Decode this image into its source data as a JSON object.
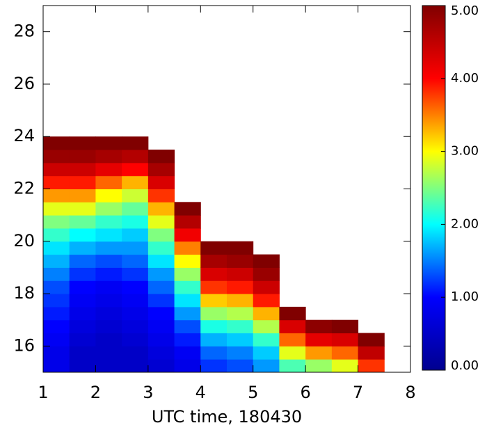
{
  "chart_data": {
    "type": "heatmap",
    "x_label": "UTC time, 180430",
    "xlim": [
      1,
      8
    ],
    "xticks": [
      1,
      2,
      3,
      4,
      5,
      6,
      7,
      8
    ],
    "ylim": [
      15,
      29
    ],
    "yticks": [
      16,
      18,
      20,
      22,
      24,
      26,
      28
    ],
    "x_bins": [
      1,
      1.5,
      2,
      2.5,
      3,
      3.5,
      4,
      4.5,
      5,
      5.5,
      6,
      6.5,
      7,
      7.5
    ],
    "y_bins": [
      15,
      15.5,
      16,
      16.5,
      17,
      17.5,
      18,
      18.5,
      19,
      19.5,
      20,
      20.5,
      21,
      21.5,
      22,
      22.5,
      23,
      23.5,
      24,
      24.5,
      25
    ],
    "z": [
      [
        0.8,
        0.8,
        0.9,
        1.0,
        1.1,
        1.2,
        1.3,
        1.5,
        1.7,
        1.9,
        2.2,
        2.5,
        2.9,
        3.4,
        3.9,
        4.4,
        4.8,
        5.0,
        null,
        null
      ],
      [
        0.5,
        0.5,
        0.6,
        0.7,
        0.8,
        0.9,
        1.0,
        1.2,
        1.4,
        1.7,
        2.0,
        2.4,
        2.9,
        3.4,
        3.9,
        4.4,
        4.8,
        5.0,
        null,
        null
      ],
      [
        0.5,
        0.5,
        0.5,
        0.6,
        0.7,
        0.8,
        0.9,
        1.1,
        1.3,
        1.6,
        1.9,
        2.2,
        2.6,
        3.0,
        3.6,
        4.2,
        4.7,
        5.0,
        null,
        null
      ],
      [
        0.5,
        0.5,
        0.6,
        0.7,
        0.8,
        0.9,
        1.0,
        1.2,
        1.4,
        1.6,
        1.8,
        2.1,
        2.4,
        2.8,
        3.3,
        4.0,
        4.6,
        5.0,
        null,
        null
      ],
      [
        0.6,
        0.7,
        0.8,
        0.9,
        1.0,
        1.2,
        1.4,
        1.6,
        1.9,
        2.2,
        2.5,
        2.9,
        3.3,
        3.8,
        4.3,
        4.7,
        5.0,
        null,
        null,
        null
      ],
      [
        0.8,
        0.9,
        1.1,
        1.3,
        1.6,
        1.9,
        2.2,
        2.6,
        3.0,
        3.5,
        4.1,
        4.6,
        5.0,
        null,
        null,
        null,
        null,
        null,
        null,
        null
      ],
      [
        1.2,
        1.4,
        1.7,
        2.1,
        2.6,
        3.2,
        3.8,
        4.3,
        4.7,
        5.0,
        null,
        null,
        null,
        null,
        null,
        null,
        null,
        null,
        null,
        null
      ],
      [
        1.3,
        1.5,
        1.8,
        2.2,
        2.7,
        3.3,
        3.9,
        4.4,
        4.8,
        5.0,
        null,
        null,
        null,
        null,
        null,
        null,
        null,
        null,
        null,
        null
      ],
      [
        1.6,
        1.8,
        2.2,
        2.7,
        3.3,
        3.9,
        4.4,
        4.8,
        5.0,
        null,
        null,
        null,
        null,
        null,
        null,
        null,
        null,
        null,
        null,
        null
      ],
      [
        2.3,
        2.9,
        3.6,
        4.3,
        5.0,
        null,
        null,
        null,
        null,
        null,
        null,
        null,
        null,
        null,
        null,
        null,
        null,
        null,
        null,
        null
      ],
      [
        2.6,
        3.4,
        4.2,
        4.9,
        null,
        null,
        null,
        null,
        null,
        null,
        null,
        null,
        null,
        null,
        null,
        null,
        null,
        null,
        null,
        null
      ],
      [
        2.9,
        3.6,
        4.3,
        5.0,
        null,
        null,
        null,
        null,
        null,
        null,
        null,
        null,
        null,
        null,
        null,
        null,
        null,
        null,
        null,
        null
      ],
      [
        3.8,
        4.5,
        5.0,
        null,
        null,
        null,
        null,
        null,
        null,
        null,
        null,
        null,
        null,
        null,
        null,
        null,
        null,
        null,
        null,
        null
      ]
    ],
    "colorscale": [
      "#00008f",
      "#0000ff",
      "#00ffff",
      "#ffff00",
      "#ff0000",
      "#800000"
    ],
    "clim": [
      0,
      5
    ],
    "cticks": [
      {
        "value": 0,
        "label": "0.00"
      },
      {
        "value": 1,
        "label": "1.00"
      },
      {
        "value": 2,
        "label": "2.00"
      },
      {
        "value": 3,
        "label": "3.00"
      },
      {
        "value": 4,
        "label": "4.00"
      },
      {
        "value": 5,
        "label": "5.00"
      }
    ]
  }
}
